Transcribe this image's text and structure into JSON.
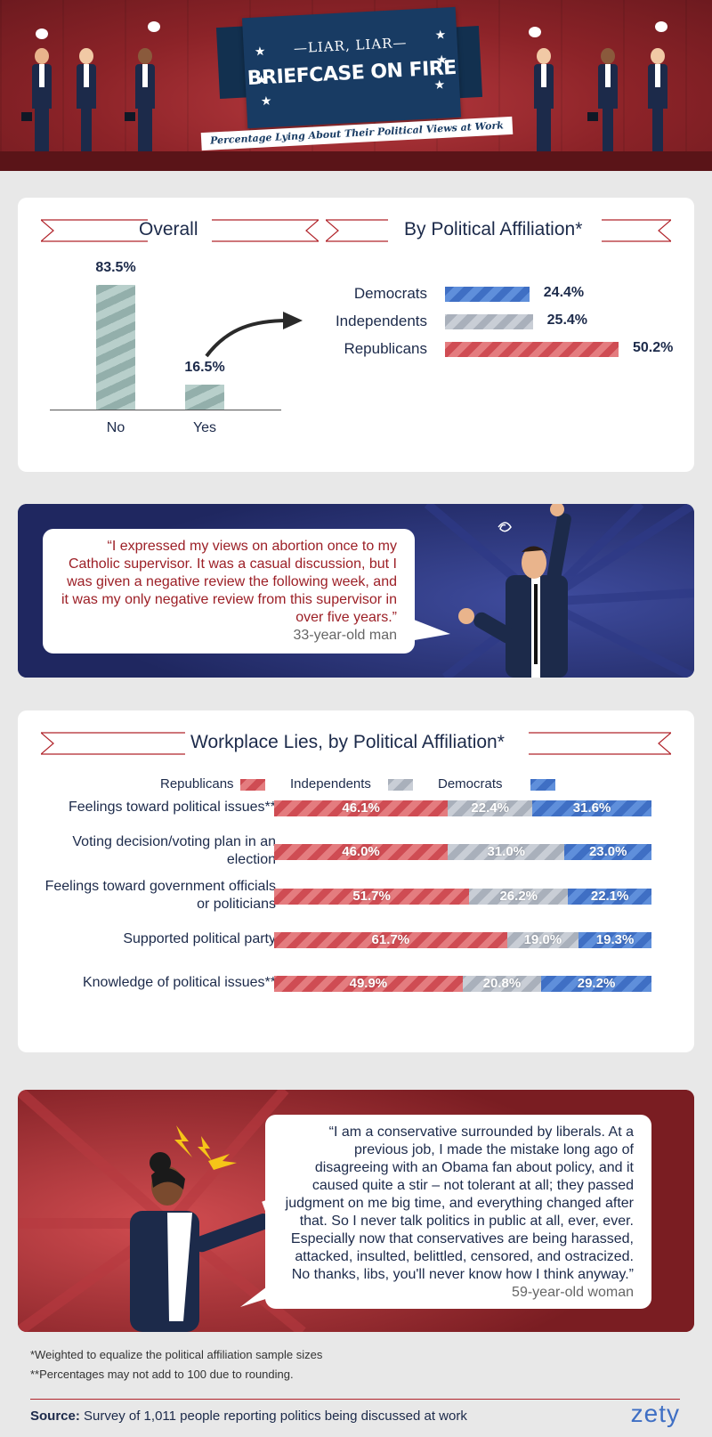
{
  "header": {
    "title_line1": "—LIAR, LIAR—",
    "title_line2": "BRIEFCASE ON FIRE",
    "subtitle": "Percentage Lying About Their Political Views at Work"
  },
  "overall": {
    "title": "Overall"
  },
  "affiliation": {
    "title": "By Political Affiliation*"
  },
  "quote1": {
    "text": "“I expressed my views on abortion once to my Catholic supervisor. It was a casual discussion, but I was given a negative review the following week, and it was my only negative review from this supervisor in over five years.”",
    "attribution": "33-year-old man"
  },
  "workplace": {
    "title": "Workplace Lies, by Political Affiliation*"
  },
  "quote2": {
    "text": "“I am a conservative surrounded by liberals. At a previous job, I made the mistake long ago of disagreeing with an Obama fan about policy, and it caused quite a stir – not tolerant at all; they passed judgment on me big time, and everything changed after that. So I never talk politics in public at all, ever, ever. Especially now that conservatives are being harassed, attacked, insulted, belittled, censored, and ostracized. No thanks, libs, you'll never know how I think anyway.”",
    "attribution": "59-year-old woman"
  },
  "footnotes": {
    "note1": "*Weighted to equalize the political affiliation sample sizes",
    "note2": "**Percentages may not add to 100 due to rounding.",
    "source_label": "Source:",
    "source_text": " Survey of 1,011 people reporting politics being discussed at work",
    "logo": "zety"
  },
  "colors": {
    "republican": "#cf4c53",
    "independent": "#a9b0bb",
    "democrat": "#3f6fc4",
    "navy": "#1c2a4a",
    "accent_red": "#b1242b"
  },
  "chart_data": [
    {
      "type": "bar",
      "title": "Overall",
      "categories": [
        "No",
        "Yes"
      ],
      "values": [
        83.5,
        16.5
      ],
      "labels": [
        "83.5%",
        "16.5%"
      ],
      "ylim": [
        0,
        100
      ]
    },
    {
      "type": "bar",
      "orientation": "horizontal",
      "title": "By Political Affiliation*",
      "categories": [
        "Democrats",
        "Independents",
        "Republicans"
      ],
      "values": [
        24.4,
        25.4,
        50.2
      ],
      "labels": [
        "24.4%",
        "25.4%",
        "50.2%"
      ],
      "colors": [
        "#3f6fc4",
        "#a9b0bb",
        "#cf4c53"
      ]
    },
    {
      "type": "bar",
      "orientation": "horizontal",
      "stacked": true,
      "title": "Workplace Lies, by Political Affiliation*",
      "legend": [
        "Republicans",
        "Independents",
        "Democrats"
      ],
      "categories": [
        "Feelings toward political issues**",
        "Voting decision/voting plan in an election",
        "Feelings toward government officials or politicians",
        "Supported political party",
        "Knowledge of political issues**"
      ],
      "series": [
        {
          "name": "Republicans",
          "values": [
            46.1,
            46.0,
            51.7,
            61.7,
            49.9
          ],
          "labels": [
            "46.1%",
            "46.0%",
            "51.7%",
            "61.7%",
            "49.9%"
          ]
        },
        {
          "name": "Independents",
          "values": [
            22.4,
            31.0,
            26.2,
            19.0,
            20.8
          ],
          "labels": [
            "22.4%",
            "31.0%",
            "26.2%",
            "19.0%",
            "20.8%"
          ]
        },
        {
          "name": "Democrats",
          "values": [
            31.6,
            23.0,
            22.1,
            19.3,
            29.2
          ],
          "labels": [
            "31.6%",
            "23.0%",
            "22.1%",
            "19.3%",
            "29.2%"
          ]
        }
      ]
    }
  ]
}
